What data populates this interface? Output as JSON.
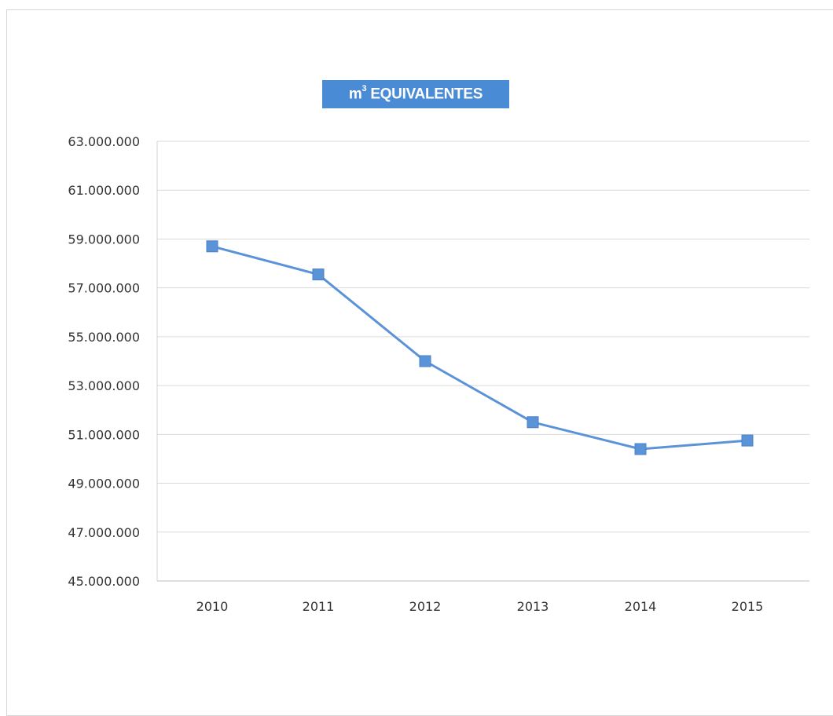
{
  "chart_data": {
    "type": "line",
    "title": "EQUIVALENTES",
    "title_unit_base": "m",
    "title_unit_exp": "3",
    "xlabel": "",
    "ylabel": "",
    "categories": [
      "2010",
      "2011",
      "2012",
      "2013",
      "2014",
      "2015"
    ],
    "series": [
      {
        "values": [
          58700000,
          57550000,
          54000000,
          51500000,
          50400000,
          50750000
        ]
      }
    ],
    "yticks": [
      "45.000.000",
      "47.000.000",
      "49.000.000",
      "51.000.000",
      "53.000.000",
      "55.000.000",
      "57.000.000",
      "59.000.000",
      "61.000.000",
      "63.000.000"
    ],
    "ylim": [
      45000000,
      63000000
    ],
    "grid": true,
    "legend": "none",
    "line_color": "#5b93d8",
    "marker": "square"
  }
}
